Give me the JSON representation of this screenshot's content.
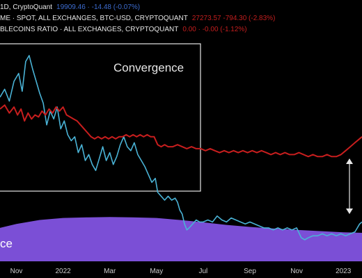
{
  "colors": {
    "background": "#000000",
    "price_line": "#4ab3d6",
    "ratio_line": "#c81e1e",
    "area_fill": "#7b4fd6",
    "legend_value_price": "#3d6dd1",
    "legend_value_ratio": "#c41e1e",
    "box": "#e6e6e6"
  },
  "legend": {
    "row1": {
      "name": "1D, CryptoQuant",
      "value": "19909.46 · -14.48 (-0.07%)"
    },
    "row2": {
      "name": "ME · SPOT, ALL EXCHANGES, BTC-USD, CRYPTOQUANT",
      "value": "27273.57 -794.30 (-2.83%)"
    },
    "row3": {
      "name": "BLECOINS RATIO · ALL EXCHANGES, CRYPTOQUANT",
      "value": "0.00 · -0.00 (-1.12%)"
    }
  },
  "annotations": {
    "box_label": "Convergence",
    "area_label": "ce"
  },
  "chart_data": {
    "type": "line",
    "title": "",
    "x_tick_labels": [
      "Nov",
      "2022",
      "Mar",
      "May",
      "Jul",
      "Sep",
      "Nov",
      "2023"
    ],
    "x_ticks": [
      0,
      2,
      4,
      6,
      8,
      10,
      12,
      14
    ],
    "xlim": [
      -0.7,
      14.8
    ],
    "ylim": [
      0,
      100
    ],
    "grid": false,
    "series": [
      {
        "key": "price",
        "color": "#4ab3d6",
        "points": [
          [
            -0.7,
            72
          ],
          [
            -0.5,
            76
          ],
          [
            -0.3,
            70
          ],
          [
            -0.1,
            80
          ],
          [
            0.1,
            84
          ],
          [
            0.25,
            75
          ],
          [
            0.4,
            90
          ],
          [
            0.55,
            93
          ],
          [
            0.7,
            86
          ],
          [
            0.85,
            80
          ],
          [
            1.0,
            74
          ],
          [
            1.15,
            69
          ],
          [
            1.3,
            58
          ],
          [
            1.45,
            65
          ],
          [
            1.6,
            61
          ],
          [
            1.75,
            67
          ],
          [
            1.9,
            56
          ],
          [
            2.05,
            60
          ],
          [
            2.2,
            53
          ],
          [
            2.35,
            50
          ],
          [
            2.5,
            52
          ],
          [
            2.65,
            44
          ],
          [
            2.8,
            48
          ],
          [
            2.95,
            40
          ],
          [
            3.1,
            43
          ],
          [
            3.25,
            38
          ],
          [
            3.4,
            35
          ],
          [
            3.55,
            41
          ],
          [
            3.7,
            47
          ],
          [
            3.85,
            40
          ],
          [
            4.0,
            44
          ],
          [
            4.15,
            38
          ],
          [
            4.3,
            42
          ],
          [
            4.45,
            48
          ],
          [
            4.6,
            52
          ],
          [
            4.75,
            47
          ],
          [
            4.9,
            45
          ],
          [
            5.05,
            49
          ],
          [
            5.2,
            43
          ],
          [
            5.35,
            40
          ],
          [
            5.5,
            37
          ],
          [
            5.65,
            33
          ],
          [
            5.8,
            29
          ],
          [
            5.95,
            31
          ],
          [
            6.05,
            24
          ],
          [
            6.2,
            22
          ],
          [
            6.35,
            20
          ],
          [
            6.5,
            22
          ],
          [
            6.65,
            20
          ],
          [
            6.8,
            21
          ],
          [
            6.9,
            19
          ],
          [
            7.0,
            15
          ],
          [
            7.1,
            13
          ],
          [
            7.2,
            8
          ],
          [
            7.3,
            5
          ],
          [
            7.4,
            6
          ],
          [
            7.55,
            8
          ],
          [
            7.7,
            10
          ],
          [
            7.85,
            9
          ],
          [
            8.0,
            9
          ],
          [
            8.2,
            10
          ],
          [
            8.4,
            9
          ],
          [
            8.6,
            12
          ],
          [
            8.8,
            10
          ],
          [
            9.0,
            9
          ],
          [
            9.2,
            11
          ],
          [
            9.4,
            10
          ],
          [
            9.6,
            9
          ],
          [
            9.8,
            8
          ],
          [
            10.0,
            9
          ],
          [
            10.2,
            8
          ],
          [
            10.4,
            7
          ],
          [
            10.6,
            6
          ],
          [
            10.8,
            6
          ],
          [
            11.0,
            5
          ],
          [
            11.2,
            6
          ],
          [
            11.4,
            5
          ],
          [
            11.6,
            6
          ],
          [
            11.8,
            5
          ],
          [
            12.0,
            6
          ],
          [
            12.2,
            1
          ],
          [
            12.35,
            0
          ],
          [
            12.5,
            1
          ],
          [
            12.7,
            2
          ],
          [
            12.9,
            2
          ],
          [
            13.1,
            3
          ],
          [
            13.3,
            2
          ],
          [
            13.5,
            3
          ],
          [
            13.7,
            2
          ],
          [
            13.9,
            3
          ],
          [
            14.1,
            2
          ],
          [
            14.3,
            3
          ],
          [
            14.5,
            4
          ],
          [
            14.6,
            6
          ],
          [
            14.7,
            8
          ],
          [
            14.8,
            9
          ]
        ]
      },
      {
        "key": "ratio",
        "color": "#c81e1e",
        "points": [
          [
            -0.7,
            66
          ],
          [
            -0.5,
            68
          ],
          [
            -0.3,
            64
          ],
          [
            -0.1,
            67
          ],
          [
            0.05,
            63
          ],
          [
            0.2,
            66
          ],
          [
            0.35,
            60
          ],
          [
            0.5,
            64
          ],
          [
            0.65,
            61
          ],
          [
            0.8,
            63
          ],
          [
            0.95,
            62
          ],
          [
            1.1,
            65
          ],
          [
            1.25,
            63
          ],
          [
            1.4,
            66
          ],
          [
            1.55,
            64
          ],
          [
            1.7,
            67
          ],
          [
            1.85,
            65
          ],
          [
            2.0,
            67
          ],
          [
            2.15,
            63
          ],
          [
            2.3,
            62
          ],
          [
            2.45,
            61
          ],
          [
            2.6,
            60
          ],
          [
            2.75,
            58
          ],
          [
            2.9,
            56
          ],
          [
            3.05,
            54
          ],
          [
            3.2,
            52
          ],
          [
            3.35,
            51
          ],
          [
            3.5,
            52
          ],
          [
            3.65,
            51
          ],
          [
            3.8,
            52
          ],
          [
            3.95,
            51
          ],
          [
            4.1,
            52
          ],
          [
            4.25,
            51
          ],
          [
            4.4,
            52
          ],
          [
            4.55,
            52
          ],
          [
            4.7,
            53
          ],
          [
            4.85,
            52
          ],
          [
            5.0,
            53
          ],
          [
            5.15,
            52
          ],
          [
            5.3,
            53
          ],
          [
            5.45,
            52
          ],
          [
            5.6,
            53
          ],
          [
            5.75,
            52
          ],
          [
            5.9,
            52
          ],
          [
            6.05,
            48
          ],
          [
            6.2,
            47
          ],
          [
            6.35,
            48
          ],
          [
            6.5,
            47
          ],
          [
            6.7,
            47
          ],
          [
            6.9,
            48
          ],
          [
            7.1,
            47
          ],
          [
            7.3,
            46
          ],
          [
            7.5,
            47
          ],
          [
            7.7,
            46
          ],
          [
            7.9,
            46
          ],
          [
            8.1,
            45
          ],
          [
            8.3,
            46
          ],
          [
            8.5,
            45
          ],
          [
            8.7,
            44
          ],
          [
            8.9,
            45
          ],
          [
            9.1,
            44
          ],
          [
            9.3,
            45
          ],
          [
            9.5,
            44
          ],
          [
            9.7,
            45
          ],
          [
            9.9,
            44
          ],
          [
            10.1,
            45
          ],
          [
            10.3,
            44
          ],
          [
            10.5,
            45
          ],
          [
            10.7,
            44
          ],
          [
            10.9,
            43
          ],
          [
            11.1,
            44
          ],
          [
            11.3,
            43
          ],
          [
            11.5,
            44
          ],
          [
            11.7,
            43
          ],
          [
            11.9,
            43
          ],
          [
            12.1,
            44
          ],
          [
            12.3,
            43
          ],
          [
            12.5,
            42
          ],
          [
            12.7,
            43
          ],
          [
            12.9,
            42
          ],
          [
            13.1,
            42
          ],
          [
            13.3,
            43
          ],
          [
            13.5,
            42
          ],
          [
            13.7,
            42
          ],
          [
            13.9,
            43
          ],
          [
            14.1,
            45
          ],
          [
            14.3,
            47
          ],
          [
            14.5,
            49
          ],
          [
            14.7,
            51
          ],
          [
            14.8,
            52
          ]
        ]
      },
      {
        "key": "area",
        "type": "area",
        "color": "#7b4fd6",
        "points": [
          [
            -0.7,
            6
          ],
          [
            0.0,
            8
          ],
          [
            1.0,
            10
          ],
          [
            2.0,
            11
          ],
          [
            3.0,
            11.3
          ],
          [
            4.0,
            11.5
          ],
          [
            5.0,
            11.3
          ],
          [
            6.0,
            11
          ],
          [
            7.0,
            10
          ],
          [
            8.0,
            8.8
          ],
          [
            9.0,
            7.5
          ],
          [
            10.0,
            6.5
          ],
          [
            11.0,
            5.7
          ],
          [
            12.0,
            5.0
          ],
          [
            13.0,
            4.4
          ],
          [
            14.0,
            3.8
          ],
          [
            14.8,
            3.5
          ]
        ]
      }
    ]
  }
}
